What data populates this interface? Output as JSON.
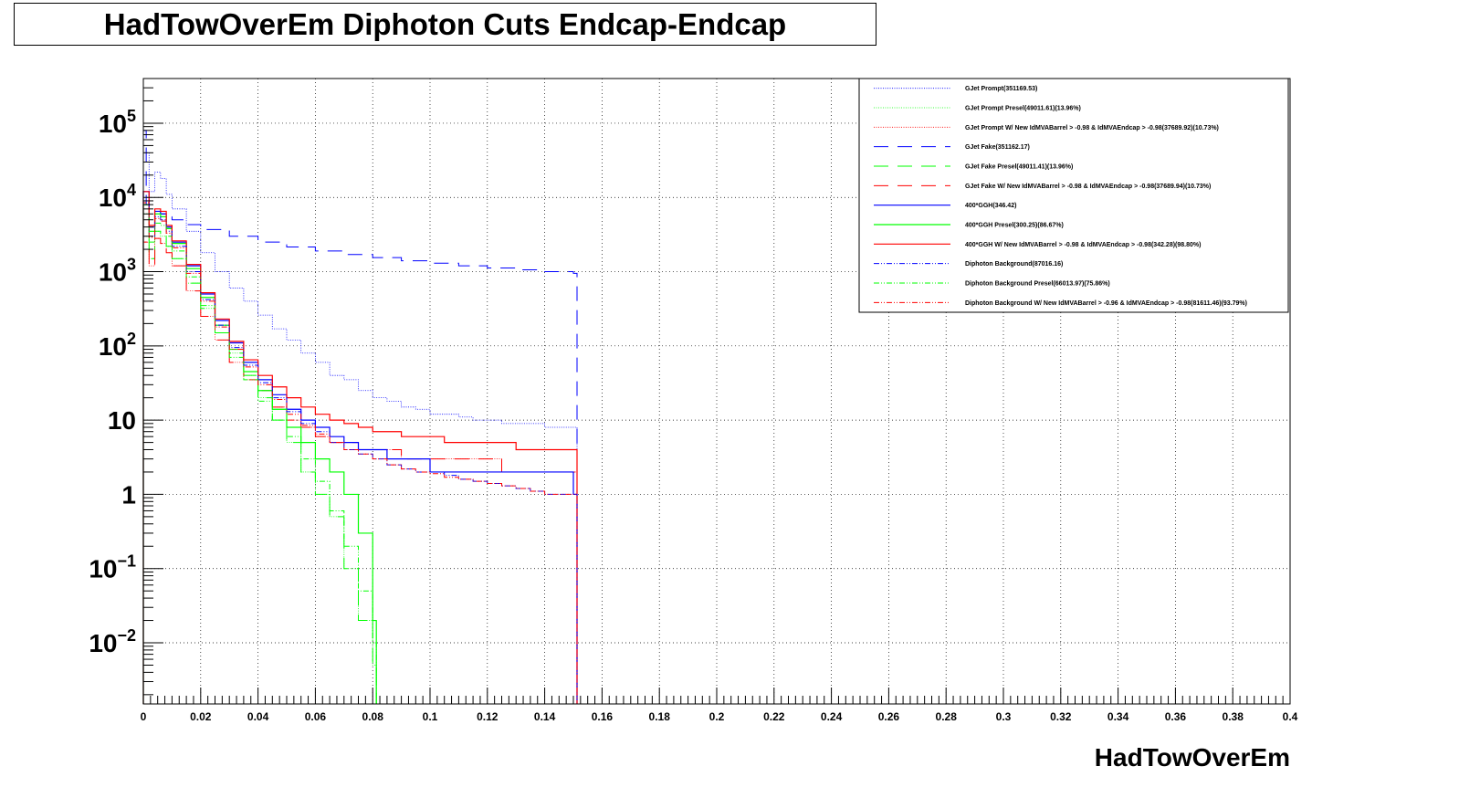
{
  "chart_data": {
    "type": "line",
    "title": "HadTowOverEm Diphoton Cuts Endcap-Endcap",
    "xlabel": "HadTowOverEm",
    "ylabel": "",
    "xlim": [
      0,
      0.4
    ],
    "ylim": [
      0.0015,
      400000
    ],
    "yscale": "log",
    "grid": true,
    "legend_position": "top-right",
    "x_ticks": [
      "0",
      "0.02",
      "0.04",
      "0.06",
      "0.08",
      "0.1",
      "0.12",
      "0.14",
      "0.16",
      "0.18",
      "0.2",
      "0.22",
      "0.24",
      "0.26",
      "0.28",
      "0.3",
      "0.32",
      "0.34",
      "0.36",
      "0.38",
      "0.4"
    ],
    "y_ticks": [
      {
        "value": 0.01,
        "base": "10",
        "exp": "−2"
      },
      {
        "value": 0.1,
        "base": "10",
        "exp": "−1"
      },
      {
        "value": 1,
        "base": "1",
        "exp": ""
      },
      {
        "value": 10,
        "base": "10",
        "exp": ""
      },
      {
        "value": 100,
        "base": "10",
        "exp": "2"
      },
      {
        "value": 1000,
        "base": "10",
        "exp": "3"
      },
      {
        "value": 10000,
        "base": "10",
        "exp": "4"
      },
      {
        "value": 100000,
        "base": "10",
        "exp": "5"
      }
    ],
    "series": [
      {
        "name": "GJet Prompt(351169.53)",
        "color": "#0000ff",
        "dash": "1,1.5",
        "width": 0.8,
        "x": [
          0,
          0.002,
          0.004,
          0.006,
          0.008,
          0.01,
          0.015,
          0.02,
          0.025,
          0.03,
          0.035,
          0.04,
          0.045,
          0.05,
          0.055,
          0.06,
          0.065,
          0.07,
          0.075,
          0.08,
          0.085,
          0.09,
          0.095,
          0.1,
          0.105,
          0.11,
          0.115,
          0.12,
          0.125,
          0.13,
          0.135,
          0.14,
          0.145,
          0.15
        ],
        "y": [
          40000,
          12000,
          22000,
          18000,
          11000,
          7000,
          3500,
          1800,
          1000,
          600,
          400,
          260,
          170,
          120,
          80,
          60,
          40,
          35,
          25,
          20,
          18,
          15,
          14,
          12,
          12,
          11,
          10,
          10,
          9,
          9,
          9,
          8,
          8,
          8
        ]
      },
      {
        "name": "GJet Prompt Presel(49011.61)(13.96%)",
        "color": "#00ff00",
        "dash": "1,1.5",
        "width": 0.8,
        "x": [
          0,
          0.002,
          0.004,
          0.006,
          0.008,
          0.01,
          0.015,
          0.02,
          0.025,
          0.03,
          0.035,
          0.04,
          0.045,
          0.05,
          0.055,
          0.06,
          0.065,
          0.07,
          0.075,
          0.08
        ],
        "y": [
          3000,
          1500,
          3500,
          3000,
          2200,
          1500,
          700,
          320,
          150,
          80,
          40,
          20,
          10,
          5,
          2,
          1,
          0.5,
          0.1,
          0.02,
          0.005
        ]
      },
      {
        "name": "GJet Prompt W/ New IdMVABarrel > -0.98 & IdMVAEndcap > -0.98(37689.92)(10.73%)",
        "color": "#ff0000",
        "dash": "1,1.5",
        "width": 0.8,
        "x": [
          0,
          0.002,
          0.004,
          0.006,
          0.008,
          0.01,
          0.015,
          0.02,
          0.025,
          0.03,
          0.035,
          0.04,
          0.045,
          0.05,
          0.055,
          0.06,
          0.065,
          0.07,
          0.075,
          0.08,
          0.085,
          0.09,
          0.095,
          0.1,
          0.105,
          0.11,
          0.115,
          0.12,
          0.125,
          0.13,
          0.135,
          0.14,
          0.145,
          0.15
        ],
        "y": [
          2500,
          1200,
          2800,
          2400,
          1800,
          1200,
          550,
          250,
          120,
          60,
          35,
          25,
          15,
          10,
          8,
          6,
          5,
          5,
          4,
          4,
          4,
          3,
          3,
          3,
          3,
          3,
          3,
          3,
          2,
          2,
          2,
          2,
          2,
          2
        ]
      },
      {
        "name": "GJet Fake(351162.17)",
        "color": "#0000ff",
        "dash": "16,10",
        "width": 1,
        "x": [
          0,
          0.001,
          0.002,
          0.004,
          0.006,
          0.008,
          0.01,
          0.015,
          0.02,
          0.03,
          0.04,
          0.05,
          0.06,
          0.07,
          0.08,
          0.09,
          0.1,
          0.11,
          0.12,
          0.13,
          0.14,
          0.15
        ],
        "y": [
          80000,
          8000,
          7500,
          6500,
          6000,
          5500,
          5000,
          4300,
          3700,
          3000,
          2500,
          2150,
          1900,
          1700,
          1550,
          1400,
          1300,
          1200,
          1120,
          1060,
          1000,
          950
        ]
      },
      {
        "name": "GJet Fake Presel(49011.41)(13.96%)",
        "color": "#00ff00",
        "dash": "16,10",
        "width": 1,
        "x": [
          0,
          0.002,
          0.004,
          0.006,
          0.008,
          0.01,
          0.015,
          0.02,
          0.025,
          0.03,
          0.035,
          0.04,
          0.045,
          0.05,
          0.055,
          0.06,
          0.065,
          0.07,
          0.075,
          0.08
        ],
        "y": [
          3000,
          1500,
          3500,
          3000,
          2200,
          1500,
          700,
          320,
          150,
          80,
          40,
          20,
          10,
          5,
          2,
          1,
          0.5,
          0.1,
          0.02,
          0.005
        ]
      },
      {
        "name": "GJet Fake W/ New IdMVABarrel > -0.98 & IdMVAEndcap > -0.98(37689.94)(10.73%)",
        "color": "#ff0000",
        "dash": "16,10",
        "width": 1,
        "x": [
          0,
          0.002,
          0.004,
          0.006,
          0.008,
          0.01,
          0.015,
          0.02,
          0.025,
          0.03,
          0.035,
          0.04,
          0.045,
          0.05,
          0.055,
          0.06,
          0.065,
          0.07,
          0.075,
          0.08,
          0.085,
          0.09,
          0.095,
          0.1,
          0.105,
          0.11,
          0.115,
          0.12,
          0.125,
          0.13,
          0.135,
          0.14,
          0.145,
          0.15
        ],
        "y": [
          2500,
          1200,
          2800,
          2400,
          1800,
          1200,
          550,
          250,
          120,
          60,
          35,
          25,
          15,
          10,
          8,
          6,
          5,
          5,
          4,
          4,
          4,
          3,
          3,
          3,
          3,
          3,
          3,
          3,
          2,
          2,
          2,
          2,
          2,
          2
        ]
      },
      {
        "name": "400*GGH(346.42)",
        "color": "#0000ff",
        "dash": "",
        "width": 1.2,
        "x": [
          0,
          0.002,
          0.004,
          0.006,
          0.008,
          0.01,
          0.015,
          0.02,
          0.025,
          0.03,
          0.035,
          0.04,
          0.045,
          0.05,
          0.055,
          0.06,
          0.065,
          0.07,
          0.075,
          0.08,
          0.085,
          0.09,
          0.095,
          0.1,
          0.105,
          0.11,
          0.115,
          0.12,
          0.125,
          0.13,
          0.135,
          0.14,
          0.145,
          0.15
        ],
        "y": [
          12000,
          4000,
          6500,
          6000,
          4000,
          2500,
          1200,
          500,
          220,
          110,
          60,
          35,
          22,
          14,
          10,
          8,
          6,
          5,
          4,
          4,
          3,
          3,
          3,
          2,
          2,
          2,
          2,
          2,
          2,
          2,
          2,
          2,
          2,
          1
        ]
      },
      {
        "name": "400*GGH Presel(300.25)(86.67%)",
        "color": "#00ff00",
        "dash": "",
        "width": 1.2,
        "x": [
          0,
          0.002,
          0.004,
          0.006,
          0.008,
          0.01,
          0.015,
          0.02,
          0.025,
          0.03,
          0.035,
          0.04,
          0.045,
          0.05,
          0.055,
          0.06,
          0.065,
          0.07,
          0.075,
          0.08
        ],
        "y": [
          8000,
          3500,
          6000,
          5500,
          3800,
          2400,
          1100,
          450,
          190,
          90,
          45,
          25,
          14,
          8,
          5,
          3,
          2,
          1,
          0.3,
          0.02
        ]
      },
      {
        "name": "400*GGH W/ New IdMVABarrel > -0.98 & IdMVAEndcap > -0.98(342.28)(98.80%)",
        "color": "#ff0000",
        "dash": "",
        "width": 1.2,
        "x": [
          0,
          0.002,
          0.004,
          0.006,
          0.008,
          0.01,
          0.015,
          0.02,
          0.025,
          0.03,
          0.035,
          0.04,
          0.045,
          0.05,
          0.055,
          0.06,
          0.065,
          0.07,
          0.075,
          0.08,
          0.085,
          0.09,
          0.095,
          0.1,
          0.105,
          0.11,
          0.115,
          0.12,
          0.125,
          0.13,
          0.135,
          0.14,
          0.145,
          0.15
        ],
        "y": [
          12000,
          4200,
          7000,
          6500,
          4200,
          2600,
          1250,
          520,
          230,
          115,
          65,
          40,
          28,
          20,
          15,
          12,
          10,
          9,
          8,
          7,
          7,
          6,
          6,
          6,
          5,
          5,
          5,
          5,
          5,
          4,
          4,
          4,
          4,
          4
        ]
      },
      {
        "name": "Diphoton Background(87016.16)",
        "color": "#0000ff",
        "dash": "6,2,1,2,1,2",
        "width": 1,
        "x": [
          0,
          0.002,
          0.004,
          0.006,
          0.008,
          0.01,
          0.015,
          0.02,
          0.025,
          0.03,
          0.035,
          0.04,
          0.045,
          0.05,
          0.055,
          0.06,
          0.065,
          0.07,
          0.075,
          0.08,
          0.085,
          0.09,
          0.095,
          0.1,
          0.105,
          0.11,
          0.115,
          0.12,
          0.125,
          0.13,
          0.135,
          0.14,
          0.145,
          0.15
        ],
        "y": [
          9000,
          3000,
          5500,
          5000,
          3500,
          2200,
          1000,
          420,
          190,
          95,
          55,
          32,
          20,
          13,
          9,
          7,
          5,
          4,
          3.5,
          3,
          2.5,
          2.2,
          2,
          2,
          1.8,
          1.6,
          1.5,
          1.4,
          1.3,
          1.2,
          1.1,
          1,
          1,
          1
        ]
      },
      {
        "name": "Diphoton Background Presel(66013.97)(75.86%)",
        "color": "#00ff00",
        "dash": "6,2,1,2,1,2",
        "width": 1,
        "x": [
          0,
          0.002,
          0.004,
          0.006,
          0.008,
          0.01,
          0.015,
          0.02,
          0.025,
          0.03,
          0.035,
          0.04,
          0.045,
          0.05,
          0.055,
          0.06,
          0.065,
          0.07,
          0.075,
          0.08
        ],
        "y": [
          6000,
          2500,
          4500,
          4200,
          3000,
          1900,
          850,
          350,
          150,
          70,
          35,
          18,
          10,
          6,
          3,
          1.5,
          0.6,
          0.2,
          0.05,
          0.01
        ]
      },
      {
        "name": "Diphoton Background W/ New IdMVABarrel > -0.96 & IdMVAEndcap > -0.98(81611.46)(93.79%)",
        "color": "#ff0000",
        "dash": "6,2,1,2,1,2",
        "width": 1,
        "x": [
          0,
          0.002,
          0.004,
          0.006,
          0.008,
          0.01,
          0.015,
          0.02,
          0.025,
          0.03,
          0.035,
          0.04,
          0.045,
          0.05,
          0.055,
          0.06,
          0.065,
          0.07,
          0.075,
          0.08,
          0.085,
          0.09,
          0.095,
          0.1,
          0.105,
          0.11,
          0.115,
          0.12,
          0.125,
          0.13,
          0.135,
          0.14,
          0.145,
          0.15
        ],
        "y": [
          8500,
          2900,
          5200,
          4800,
          3300,
          2100,
          950,
          400,
          180,
          90,
          52,
          30,
          19,
          12,
          8.5,
          6.5,
          5,
          4,
          3.5,
          3,
          2.5,
          2.2,
          2,
          1.9,
          1.7,
          1.6,
          1.5,
          1.4,
          1.3,
          1.2,
          1.1,
          1,
          1,
          1
        ]
      }
    ]
  }
}
